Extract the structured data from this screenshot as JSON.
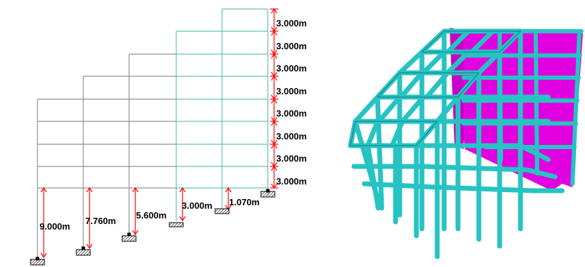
{
  "colors": {
    "frame_line": "#909090",
    "frame_line_right": "#5fc2b6",
    "dimension_red": "#ff0000",
    "member_cyan": "#27c3c3",
    "member_edge": "#0b7d80",
    "wall_magenta": "#e000e0"
  },
  "storey_height_labels": [
    "3.000m",
    "3.000m",
    "3.000m",
    "3.000m",
    "3.000m",
    "3.000m",
    "3.000m",
    "3.000m"
  ],
  "support_height_labels": [
    "9.000m",
    "7.760m",
    "5.600m",
    "3.000m",
    "1.070m"
  ]
}
